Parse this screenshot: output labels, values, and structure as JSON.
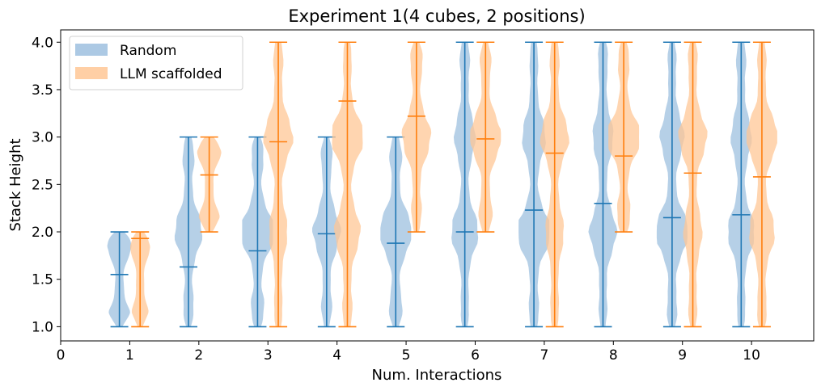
{
  "chart_data": {
    "type": "violin",
    "title": "Experiment 1(4 cubes, 2 positions)",
    "xlabel": "Num. Interactions",
    "ylabel": "Stack Height",
    "xlim": [
      0,
      10.9
    ],
    "ylim": [
      0.85,
      4.13
    ],
    "xticks": [
      "0",
      "1",
      "2",
      "3",
      "4",
      "5",
      "6",
      "7",
      "8",
      "9",
      "10"
    ],
    "yticks": [
      "1.0",
      "1.5",
      "2.0",
      "2.5",
      "3.0",
      "3.5",
      "4.0"
    ],
    "colors": {
      "random": "#1f77b4",
      "llm": "#ff7f0e",
      "random_fill": "#9dc0df",
      "llm_fill": "#ffc795"
    },
    "series": [
      {
        "name": "Random",
        "key": "random",
        "offset": -0.15,
        "groups": [
          {
            "x": 1,
            "min": 1.0,
            "max": 2.0,
            "mean": 1.55
          },
          {
            "x": 2,
            "min": 1.0,
            "max": 3.0,
            "mean": 1.63
          },
          {
            "x": 3,
            "min": 1.0,
            "max": 3.0,
            "mean": 1.8
          },
          {
            "x": 4,
            "min": 1.0,
            "max": 3.0,
            "mean": 1.98
          },
          {
            "x": 5,
            "min": 1.0,
            "max": 3.0,
            "mean": 1.88
          },
          {
            "x": 6,
            "min": 1.0,
            "max": 4.0,
            "mean": 2.0
          },
          {
            "x": 7,
            "min": 1.0,
            "max": 4.0,
            "mean": 2.23
          },
          {
            "x": 8,
            "min": 1.0,
            "max": 4.0,
            "mean": 2.3
          },
          {
            "x": 9,
            "min": 1.0,
            "max": 4.0,
            "mean": 2.15
          },
          {
            "x": 10,
            "min": 1.0,
            "max": 4.0,
            "mean": 2.18
          }
        ]
      },
      {
        "name": "LLM scaffolded",
        "key": "llm",
        "offset": 0.15,
        "groups": [
          {
            "x": 1,
            "min": 1.0,
            "max": 2.0,
            "mean": 1.93
          },
          {
            "x": 2,
            "min": 2.0,
            "max": 3.0,
            "mean": 2.6
          },
          {
            "x": 3,
            "min": 1.0,
            "max": 4.0,
            "mean": 2.95
          },
          {
            "x": 4,
            "min": 1.0,
            "max": 4.0,
            "mean": 3.38
          },
          {
            "x": 5,
            "min": 2.0,
            "max": 4.0,
            "mean": 3.22
          },
          {
            "x": 6,
            "min": 2.0,
            "max": 4.0,
            "mean": 2.98
          },
          {
            "x": 7,
            "min": 1.0,
            "max": 4.0,
            "mean": 2.83
          },
          {
            "x": 8,
            "min": 2.0,
            "max": 4.0,
            "mean": 2.8
          },
          {
            "x": 9,
            "min": 1.0,
            "max": 4.0,
            "mean": 2.62
          },
          {
            "x": 10,
            "min": 1.0,
            "max": 4.0,
            "mean": 2.58
          }
        ]
      }
    ],
    "legend": {
      "position": "top-left",
      "entries": [
        "Random",
        "LLM scaffolded"
      ]
    }
  }
}
